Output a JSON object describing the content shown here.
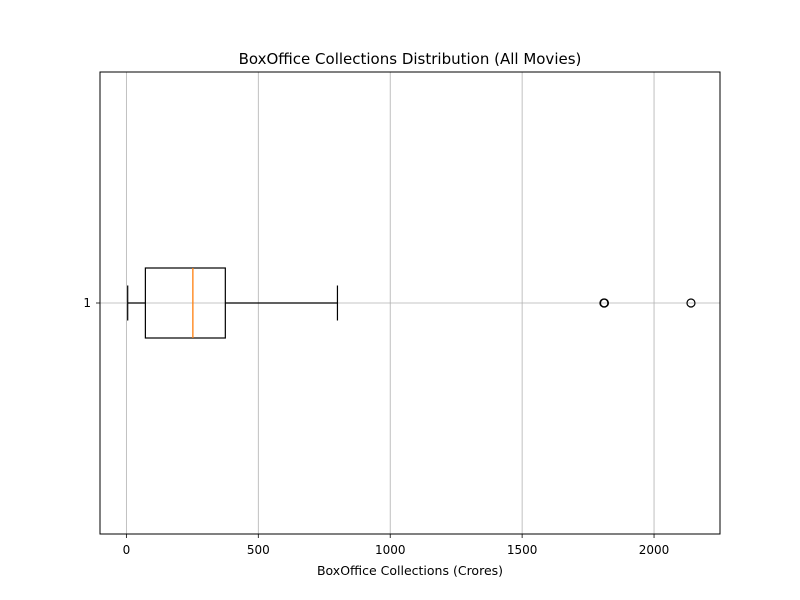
{
  "chart_data": {
    "type": "boxplot",
    "orientation": "horizontal",
    "title": "BoxOffice Collections Distribution (All Movies)",
    "xlabel": "BoxOffice Collections (Crores)",
    "ylabel": "",
    "xlim": [
      -100,
      2250
    ],
    "xticks": [
      0,
      500,
      1000,
      1500,
      2000
    ],
    "grid": true,
    "categories": [
      "1"
    ],
    "boxes": [
      {
        "category": "1",
        "whisker_low": 5,
        "q1": 72,
        "median": 252,
        "q3": 375,
        "whisker_high": 800,
        "outliers": [
          1810,
          1812,
          2140
        ]
      }
    ],
    "colors": {
      "box": "#000000",
      "median": "#ff7f0e",
      "grid": "#b0b0b0"
    }
  }
}
